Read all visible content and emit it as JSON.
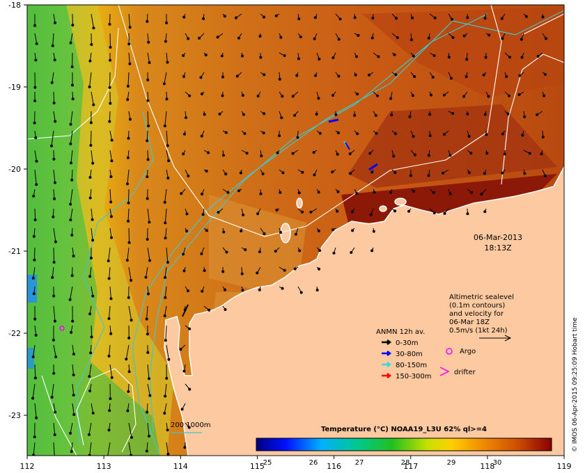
{
  "map": {
    "lon_labels": [
      "112",
      "113",
      "114",
      "115",
      "116",
      "117",
      "118",
      "119"
    ],
    "lat_labels": [
      "-18",
      "-19",
      "-20",
      "-21",
      "-22",
      "-23"
    ],
    "date": "06-Mar-2013",
    "time": "18:13Z",
    "altimetry_note": [
      "Altimetric sealevel",
      "(0.1m contours)",
      "and velocity for",
      "06-Mar 18Z",
      "0.5m/s (1kt 24h)"
    ],
    "legend_title": "ANMN 12h av.",
    "legend_items": [
      {
        "label": "0-30m",
        "color": "#000000"
      },
      {
        "label": "30-80m",
        "color": "#0000ff"
      },
      {
        "label": "80-150m",
        "color": "#33dddd"
      },
      {
        "label": "150-300m",
        "color": "#ff0000"
      }
    ],
    "argo_label": "Argo",
    "drifter_label": "drifter",
    "isobath_label": "200  1000m",
    "colorbar_title": "Temperature (°C) NOAA19_L3U 62% ql>=4",
    "colorbar_ticks": [
      "25",
      "26",
      "27",
      "28",
      "29",
      "30"
    ],
    "credit": "© IMOS 06-Apr-2015 09:25:09 Hobart time",
    "colors": {
      "land": "#fcc9a0",
      "isobath": "#40c8c8",
      "contour": "#ffffff",
      "argo": "#ff00ff",
      "drifter": "#ff00ff"
    }
  }
}
